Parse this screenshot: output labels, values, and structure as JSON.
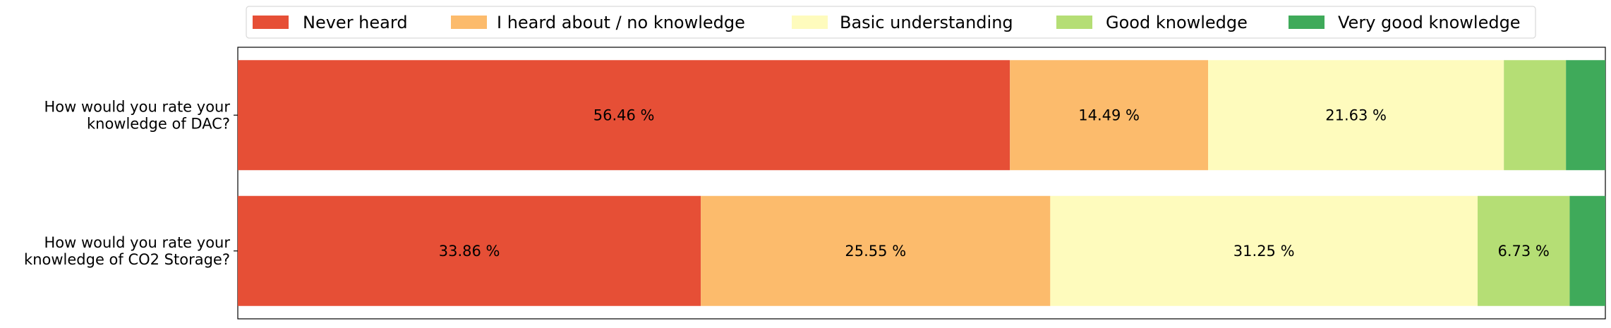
{
  "chart_data": {
    "type": "bar",
    "orientation": "horizontal",
    "stacked": true,
    "categories": [
      "How would you rate your\nknowledge of DAC?",
      "How would you rate your\nknowledge of CO2 Storage?"
    ],
    "series": [
      {
        "name": "Never heard",
        "color": "#e64f36",
        "values": [
          56.46,
          33.86
        ]
      },
      {
        "name": "I heard about / no knowledge",
        "color": "#fcbb6c",
        "values": [
          14.49,
          25.55
        ]
      },
      {
        "name": "Basic understanding",
        "color": "#fefbbd",
        "values": [
          21.63,
          31.25
        ]
      },
      {
        "name": "Good knowledge",
        "color": "#b5de75",
        "values": [
          4.54,
          6.73
        ]
      },
      {
        "name": "Very good knowledge",
        "color": "#3faa5a",
        "values": [
          2.88,
          2.61
        ]
      }
    ],
    "xlim": [
      0,
      100
    ],
    "value_labels": [
      [
        "56.46 %",
        "14.49 %",
        "21.63 %",
        "",
        ""
      ],
      [
        "33.86 %",
        "25.55 %",
        "31.25 %",
        "6.73 %",
        ""
      ]
    ],
    "legend_position": "top-center",
    "grid": false,
    "x_axis_visible": false
  }
}
